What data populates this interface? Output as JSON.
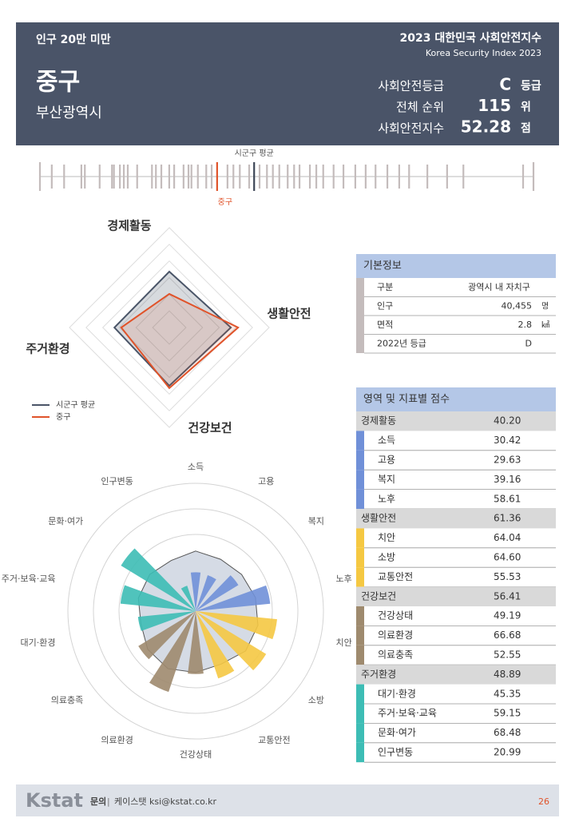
{
  "header": {
    "badge": "인구 20만 미만",
    "title": "2023 대한민국 사회안전지수",
    "subtitle": "Korea Security Index 2023",
    "region": "중구",
    "city": "부산광역시",
    "stats": [
      {
        "label": "사회안전등급",
        "value": "C",
        "unit": "등급"
      },
      {
        "label": "전체 순위",
        "value": "115",
        "unit": "위"
      },
      {
        "label": "사회안전지수",
        "value": "52.28",
        "unit": "점"
      }
    ]
  },
  "strip": {
    "average_label": "시군구 평균",
    "highlight_label": "중구",
    "xlim": [
      0,
      100
    ],
    "values": [
      0,
      2.4,
      4.9,
      8.4,
      9.1,
      12.1,
      14.6,
      15.0,
      16.2,
      17.0,
      17.8,
      19.7,
      22.7,
      23.5,
      24.6,
      26.2,
      27.2,
      29.1,
      30.1,
      30.7,
      32.0,
      33.7,
      34.8,
      38.0,
      39.2,
      40.5,
      42.4,
      44.5,
      46.0,
      47.2,
      48.5,
      50.2,
      51.5,
      52.6,
      54.7,
      56.0,
      57.4,
      59.5,
      61.5,
      63.9,
      66.0,
      68.0,
      70.4,
      72.8,
      74.8,
      78.5,
      82.5,
      85.8,
      97.9,
      100
    ],
    "average": 43.4,
    "highlight": 35.9
  },
  "radar": {
    "rlim": [
      20,
      80
    ],
    "rticks": [
      30,
      40,
      50,
      60,
      70,
      80
    ],
    "average": {
      "name": "시군구 평균",
      "color": "#4a5568",
      "values": [
        53.6,
        57,
        55,
        53
      ]
    },
    "region": {
      "name": "중구",
      "color": "#e0532a"
    }
  },
  "polar": {
    "rlim": [
      0,
      100
    ],
    "rticks": [
      20,
      40,
      60,
      80,
      100
    ],
    "average": [
      47,
      45,
      46,
      48,
      50,
      50,
      46,
      48,
      50,
      48,
      44,
      46,
      46,
      44
    ]
  },
  "basic_info": {
    "title": "기본정보",
    "header": [
      "구분",
      "광역시 내 자치구"
    ],
    "rows": [
      [
        "인구",
        "40,455",
        "명"
      ],
      [
        "면적",
        "2.8",
        "㎢"
      ],
      [
        "2022년 등급",
        "D"
      ]
    ]
  },
  "scores": {
    "title": "영역 및 지표별 점수",
    "domains": [
      {
        "name": "경제활동",
        "score": {
          "value": 40.2,
          "label": "40.20"
        },
        "color": "#7090d8",
        "items": [
          {
            "name": "소득",
            "score": 30.42
          },
          {
            "name": "고용",
            "score": 29.63
          },
          {
            "name": "복지",
            "score": 39.16
          },
          {
            "name": "노후",
            "score": 58.61
          }
        ]
      },
      {
        "name": "생활안전",
        "score": 61.36,
        "color": "#f5c842",
        "items": [
          {
            "name": "치안",
            "score": 64.04
          },
          {
            "name": "소방",
            "score": {
              "value": 64.6,
              "label": "64.60"
            }
          },
          {
            "name": "교통안전",
            "score": 55.53
          }
        ]
      },
      {
        "name": "건강보건",
        "score": 56.41,
        "color": "#9e8a6e",
        "items": [
          {
            "name": "건강상태",
            "score": 49.19
          },
          {
            "name": "의료환경",
            "score": 66.68
          },
          {
            "name": "의료충족",
            "score": 52.55
          }
        ]
      },
      {
        "name": "주거환경",
        "score": 48.89,
        "color": "#3dbdb5",
        "items": [
          {
            "name": "대기·환경",
            "score": 45.35
          },
          {
            "name": "주거·보육·교육",
            "score": 59.15
          },
          {
            "name": "문화·여가",
            "score": 68.48
          },
          {
            "name": "인구변동",
            "score": 20.99
          }
        ]
      }
    ]
  },
  "footer": {
    "logo": "Kstat",
    "contact_label": "문의",
    "contact": "케이스탯 ksi@kstat.co.kr",
    "page": "26"
  }
}
